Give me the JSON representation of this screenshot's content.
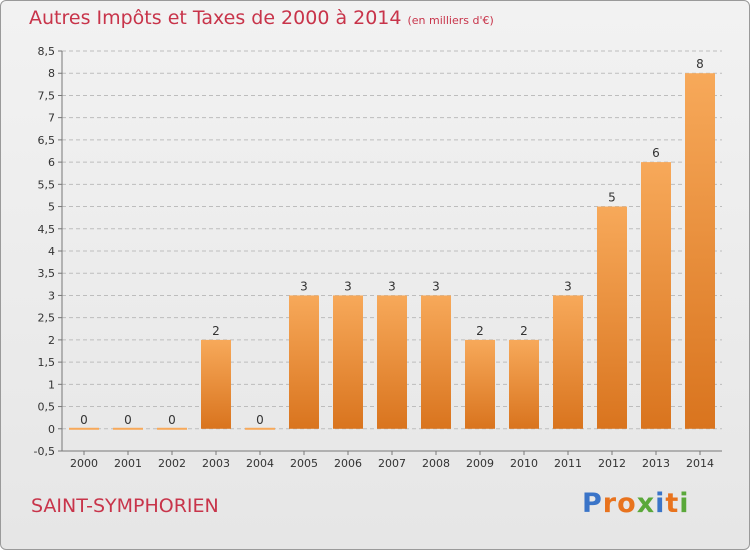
{
  "title": "Autres Impôts et Taxes de 2000 à 2014",
  "unit": "(en milliers d'€)",
  "commune": "SAINT-SYMPHORIEN",
  "logo": {
    "text": "Proxiti",
    "colors": [
      "#3a74c8",
      "#e8731e",
      "#e8731e",
      "#5aa83a",
      "#3a74c8",
      "#e8731e",
      "#5aa83a"
    ]
  },
  "colors": {
    "title": "#c8344a",
    "bar_top": "#f7a95a",
    "bar_bottom": "#d9741e"
  },
  "chart_data": {
    "type": "bar",
    "title": "Autres Impôts et Taxes de 2000 à 2014",
    "xlabel": "",
    "ylabel": "",
    "categories": [
      "2000",
      "2001",
      "2002",
      "2003",
      "2004",
      "2005",
      "2006",
      "2007",
      "2008",
      "2009",
      "2010",
      "2011",
      "2012",
      "2013",
      "2014"
    ],
    "values": [
      0,
      0,
      0,
      2,
      0,
      3,
      3,
      3,
      3,
      2,
      2,
      3,
      5,
      6,
      8
    ],
    "data_labels": [
      "0",
      "0",
      "0",
      "2",
      "0",
      "3",
      "3",
      "3",
      "3",
      "2",
      "2",
      "3",
      "5",
      "6",
      "8"
    ],
    "ylim": [
      -0.5,
      8.5
    ],
    "yticks": [
      "-0,5",
      "0",
      "0,5",
      "1",
      "1,5",
      "2",
      "2,5",
      "3",
      "3,5",
      "4",
      "4,5",
      "5",
      "5,5",
      "6",
      "6,5",
      "7",
      "7,5",
      "8",
      "8,5"
    ],
    "grid": "horizontal dashed",
    "legend": "none"
  }
}
